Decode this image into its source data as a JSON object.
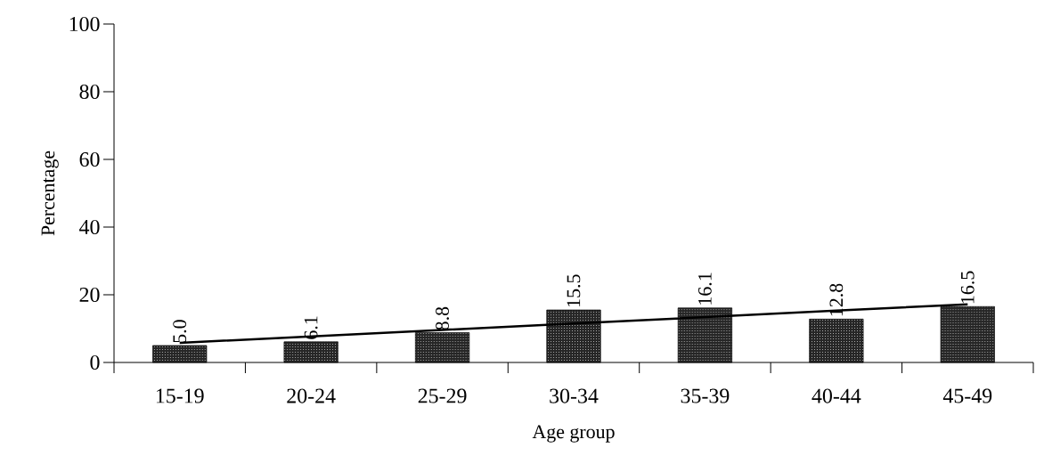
{
  "chart_data": {
    "type": "bar",
    "xlabel": "Age group",
    "ylabel": "Percentage",
    "categories": [
      "15-19",
      "20-24",
      "25-29",
      "30-34",
      "35-39",
      "40-44",
      "45-49"
    ],
    "series": [
      {
        "color": "#262626",
        "values": [
          5.0,
          6.1,
          8.8,
          15.5,
          16.1,
          12.8,
          16.5
        ],
        "value_labels": [
          "5.0",
          "6.1",
          "8.8",
          "15.5",
          "16.1",
          "12.8",
          "16.5"
        ]
      },
      {
        "type": "line",
        "color": "#000000",
        "values": [
          5.8,
          7.7,
          9.6,
          11.5,
          13.4,
          15.3,
          17.2
        ]
      }
    ],
    "ylim": [
      0,
      100
    ],
    "yticks": [
      0,
      20,
      40,
      60,
      80,
      100
    ],
    "grid": false
  }
}
